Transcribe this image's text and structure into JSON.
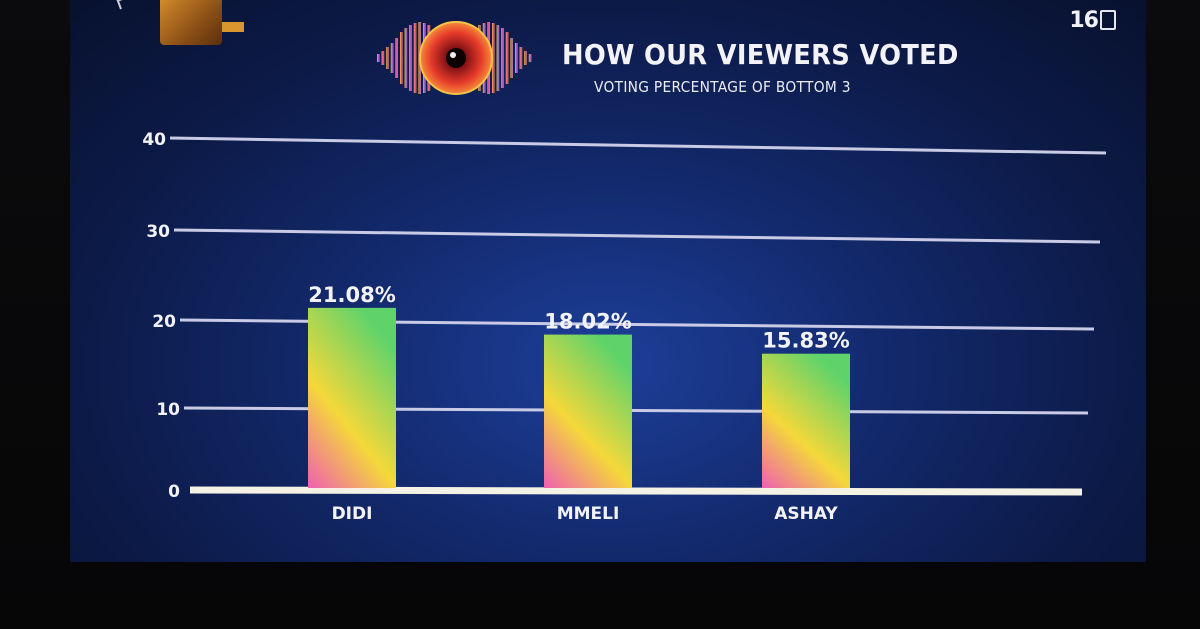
{
  "header": {
    "title": "HOW OUR VIEWERS VOTED",
    "subtitle": "VOTING PERCENTAGE OF BOTTOM 3"
  },
  "branding": {
    "right_logo_number": "16"
  },
  "colors": {
    "screen_bg": "#132a6e",
    "grid_line": "#c9cbe6",
    "baseline": "#f4f2e4",
    "bar_top": "#5fd36a",
    "bar_mid": "#f4d83a",
    "bar_bottom": "#ef5fb0",
    "text": "#f3f3f7"
  },
  "chart_data": {
    "type": "bar",
    "categories": [
      "DIDI",
      "MMELI",
      "ASHAY"
    ],
    "values": [
      21.08,
      18.02,
      15.83
    ],
    "data_labels": [
      "21.08%",
      "18.02%",
      "15.83%"
    ],
    "yticks": [
      0,
      10,
      20,
      30,
      40
    ],
    "ylim": [
      0,
      40
    ],
    "title": "HOW OUR VIEWERS VOTED",
    "subtitle": "VOTING PERCENTAGE OF BOTTOM 3",
    "xlabel": "",
    "ylabel": "",
    "grid": true,
    "legend": "none"
  }
}
